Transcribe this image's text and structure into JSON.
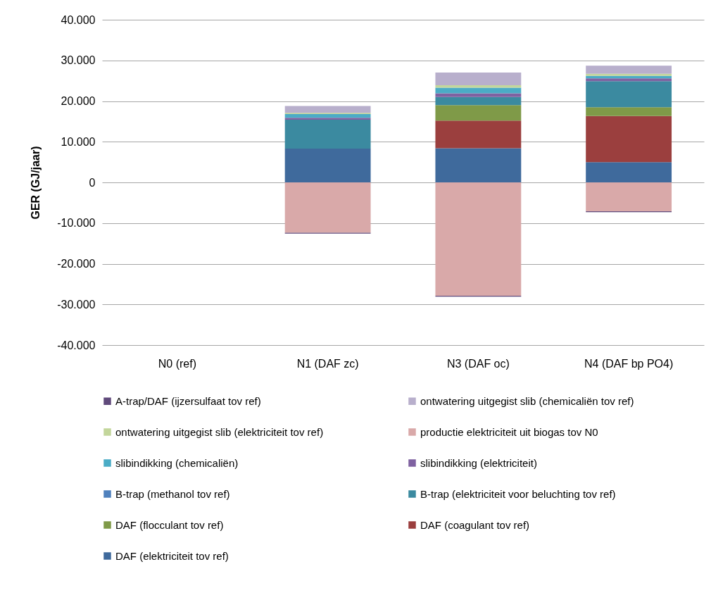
{
  "chart_data": {
    "type": "bar",
    "stacked": true,
    "ylabel": "GER (GJ/jaar)",
    "categories": [
      "N0 (ref)",
      "N1 (DAF zc)",
      "N3 (DAF oc)",
      "N4 (DAF bp PO4)"
    ],
    "series": [
      {
        "name": "DAF (elektriciteit tov ref)",
        "color": "#3f6a9c",
        "values": [
          null,
          8300,
          8400,
          5000
        ]
      },
      {
        "name": "DAF (coagulant tov ref)",
        "color": "#9b3f3e",
        "values": [
          null,
          null,
          6800,
          11300
        ]
      },
      {
        "name": "DAF (flocculant tov ref)",
        "color": "#7f9a48",
        "values": [
          null,
          null,
          3800,
          2200
        ]
      },
      {
        "name": "B-trap (elektriciteit voor beluchting tov ref)",
        "color": "#3b8aa0",
        "values": [
          null,
          7100,
          2000,
          6400
        ]
      },
      {
        "name": "B-trap (methanol tov ref)",
        "color": "#4f81bd",
        "values": [
          null,
          null,
          null,
          null
        ]
      },
      {
        "name": "slibindikking (elektriciteit)",
        "color": "#7f62a1",
        "values": [
          null,
          500,
          900,
          700
        ]
      },
      {
        "name": "slibindikking (chemicaliën)",
        "color": "#4bacc6",
        "values": [
          null,
          900,
          1400,
          600
        ]
      },
      {
        "name": "productie elektriciteit uit biogas tov N0",
        "color": "#d9a9a9",
        "values": [
          null,
          -12400,
          -27900,
          -7100
        ]
      },
      {
        "name": "ontwatering uitgegist slib (elektriciteit tov ref)",
        "color": "#c3d69b",
        "values": [
          null,
          300,
          600,
          500
        ]
      },
      {
        "name": "ontwatering uitgegist slib (chemicaliën tov ref)",
        "color": "#b8afcc",
        "values": [
          null,
          1700,
          3100,
          2000
        ]
      },
      {
        "name": "A-trap/DAF (ijzersulfaat tov ref)",
        "color": "#604a7b",
        "values": [
          null,
          -200,
          -200,
          -200
        ]
      }
    ],
    "ylim": [
      -40000,
      40000
    ],
    "yticks": [
      {
        "value": -40000,
        "label": "-40.000"
      },
      {
        "value": -30000,
        "label": "-30.000"
      },
      {
        "value": -20000,
        "label": "-20.000"
      },
      {
        "value": -10000,
        "label": "-10.000"
      },
      0,
      {
        "value": 10000,
        "label": "10.000"
      },
      {
        "value": 20000,
        "label": "20.000"
      },
      {
        "value": 30000,
        "label": "30.000"
      },
      {
        "value": 40000,
        "label": "40.000"
      }
    ],
    "grid": "y",
    "legend": "bottom"
  }
}
